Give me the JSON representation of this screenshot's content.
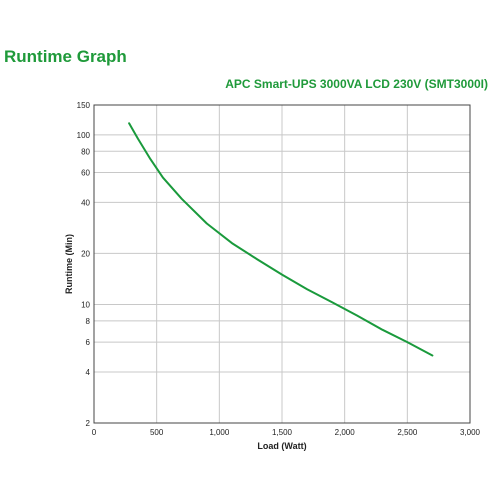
{
  "page": {
    "title": "Runtime Graph",
    "subtitle": "APC Smart-UPS 3000VA LCD 230V (SMT3000I)"
  },
  "colors": {
    "accent": "#1f9a3a",
    "curve": "#1a9a3c",
    "grid": "#c8c8c8",
    "frame": "#444444"
  },
  "chart_data": {
    "type": "line",
    "title": "Runtime Graph",
    "subtitle": "APC Smart-UPS 3000VA LCD 230V (SMT3000I)",
    "xlabel": "Load (Watt)",
    "ylabel": "Runtime (Min)",
    "xlim": [
      0,
      3000
    ],
    "ylim": [
      2,
      150
    ],
    "yscale": "log",
    "grid": true,
    "x_ticks": [
      0,
      500,
      1000,
      1500,
      2000,
      2500,
      3000
    ],
    "x_tick_labels": [
      "0",
      "500",
      "1,000",
      "1,500",
      "2,000",
      "2,500",
      "3,000"
    ],
    "y_ticks": [
      2,
      4,
      6,
      8,
      10,
      20,
      40,
      60,
      80,
      100,
      150
    ],
    "y_tick_labels": [
      "2",
      "4",
      "6",
      "8",
      "10",
      "20",
      "40",
      "60",
      "80",
      "100",
      "150"
    ],
    "series": [
      {
        "x": [
          280,
          350,
          450,
          550,
          700,
          900,
          1100,
          1300,
          1500,
          1700,
          1900,
          2100,
          2300,
          2500,
          2700
        ],
        "y": [
          117,
          95,
          72,
          56,
          42,
          30,
          23,
          18.5,
          15,
          12.3,
          10.3,
          8.6,
          7.1,
          6.0,
          5.0
        ]
      }
    ]
  }
}
